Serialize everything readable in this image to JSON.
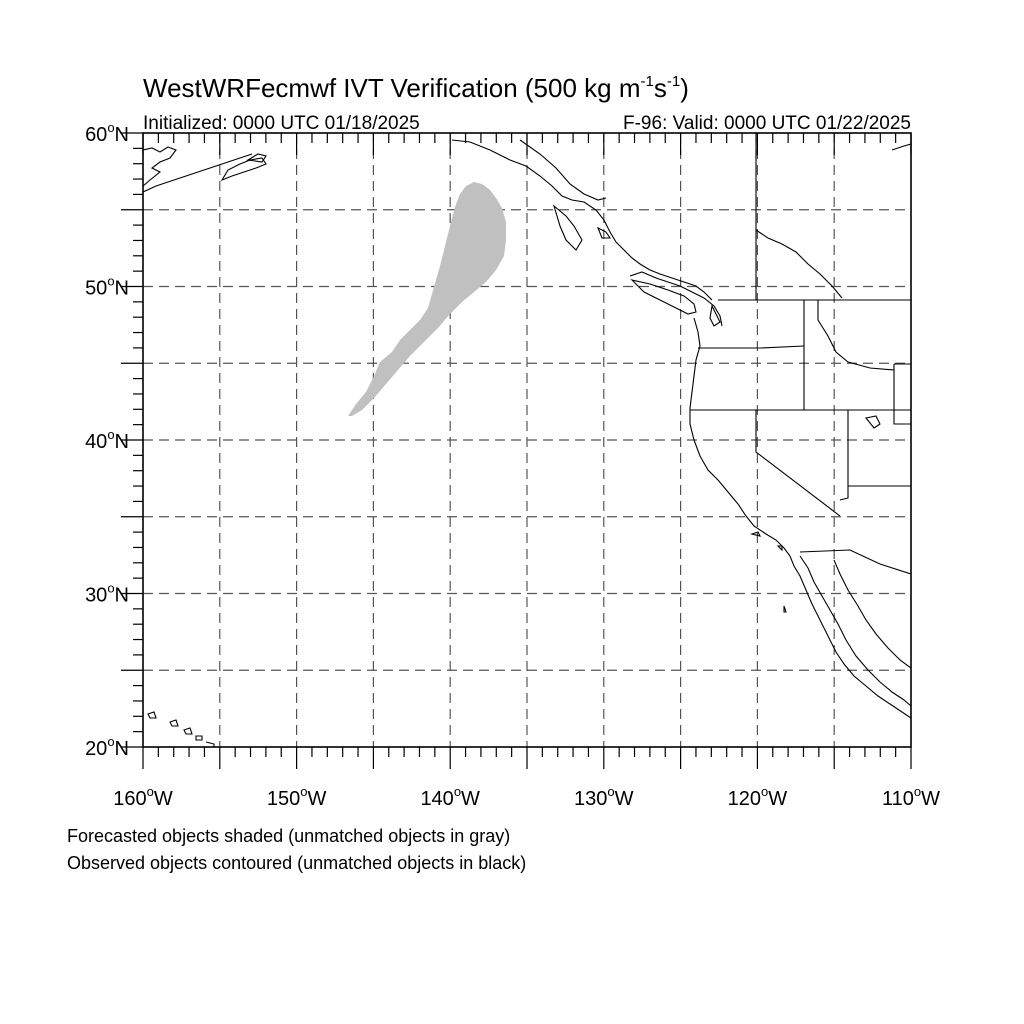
{
  "title": {
    "main": "WestWRFecmwf IVT Verification (500 kg m",
    "sup1": "-1",
    "mid": "s",
    "sup2": "-1",
    "end": ")"
  },
  "subtitle_left": "Initialized: 0000 UTC 01/18/2025",
  "subtitle_right": "F-96: Valid: 0000 UTC 01/22/2025",
  "lat_labels": [
    {
      "lat": 60,
      "text": "60"
    },
    {
      "lat": 50,
      "text": "50"
    },
    {
      "lat": 40,
      "text": "40"
    },
    {
      "lat": 30,
      "text": "30"
    },
    {
      "lat": 20,
      "text": "20"
    }
  ],
  "lon_labels": [
    {
      "lon": -160,
      "text": "160"
    },
    {
      "lon": -150,
      "text": "150"
    },
    {
      "lon": -140,
      "text": "140"
    },
    {
      "lon": -130,
      "text": "130"
    },
    {
      "lon": -120,
      "text": "120"
    },
    {
      "lon": -110,
      "text": "110"
    }
  ],
  "lat_suffix": "N",
  "lon_suffix": "W",
  "degree_symbol": "o",
  "map": {
    "lon_range": [
      -160,
      -110
    ],
    "lat_range": [
      20,
      60
    ],
    "grid_step_deg": 5,
    "forecast_object_color": "#c0c0c0",
    "observed_object_color": "#000000"
  },
  "notes": {
    "forecast": "Forecasted objects shaded (unmatched objects in gray)",
    "observed": "Observed objects contoured (unmatched objects in black)"
  }
}
